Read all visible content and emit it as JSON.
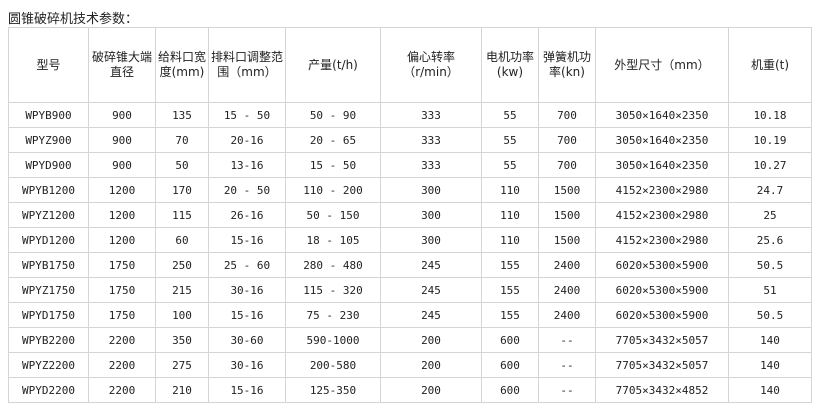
{
  "title": "圆锥破碎机技术参数：",
  "headers": [
    "型号",
    "破碎锥大端直径",
    "给料口宽度(mm)",
    "排料口调整范围（mm）",
    "产量(t/h)",
    "偏心转率（r/min）",
    "电机功率(kw)",
    "弹簧机功率(kn)",
    "外型尺寸（mm）",
    "机重(t)"
  ],
  "rows": [
    [
      "WPYB900",
      "900",
      "135",
      "15 - 50",
      "50 - 90",
      "333",
      "55",
      "700",
      "3050×1640×2350",
      "10.18"
    ],
    [
      "WPYZ900",
      "900",
      "70",
      "20-16",
      "20 - 65",
      "333",
      "55",
      "700",
      "3050×1640×2350",
      "10.19"
    ],
    [
      "WPYD900",
      "900",
      "50",
      "13-16",
      "15 - 50",
      "333",
      "55",
      "700",
      "3050×1640×2350",
      "10.27"
    ],
    [
      "WPYB1200",
      "1200",
      "170",
      "20 - 50",
      "110 - 200",
      "300",
      "110",
      "1500",
      "4152×2300×2980",
      "24.7"
    ],
    [
      "WPYZ1200",
      "1200",
      "115",
      "26-16",
      "50 - 150",
      "300",
      "110",
      "1500",
      "4152×2300×2980",
      "25"
    ],
    [
      "WPYD1200",
      "1200",
      "60",
      "15-16",
      "18 - 105",
      "300",
      "110",
      "1500",
      "4152×2300×2980",
      "25.6"
    ],
    [
      "WPYB1750",
      "1750",
      "250",
      "25 - 60",
      "280 - 480",
      "245",
      "155",
      "2400",
      "6020×5300×5900",
      "50.5"
    ],
    [
      "WPYZ1750",
      "1750",
      "215",
      "30-16",
      "115 - 320",
      "245",
      "155",
      "2400",
      "6020×5300×5900",
      "51"
    ],
    [
      "WPYD1750",
      "1750",
      "100",
      "15-16",
      "75 - 230",
      "245",
      "155",
      "2400",
      "6020×5300×5900",
      "50.5"
    ],
    [
      "WPYB2200",
      "2200",
      "350",
      "30-60",
      "590-1000",
      "200",
      "600",
      "--",
      "7705×3432×5057",
      "140"
    ],
    [
      "WPYZ2200",
      "2200",
      "275",
      "30-16",
      "200-580",
      "200",
      "600",
      "--",
      "7705×3432×5057",
      "140"
    ],
    [
      "WPYD2200",
      "2200",
      "210",
      "15-16",
      "125-350",
      "200",
      "600",
      "--",
      "7705×3432×4852",
      "140"
    ]
  ]
}
